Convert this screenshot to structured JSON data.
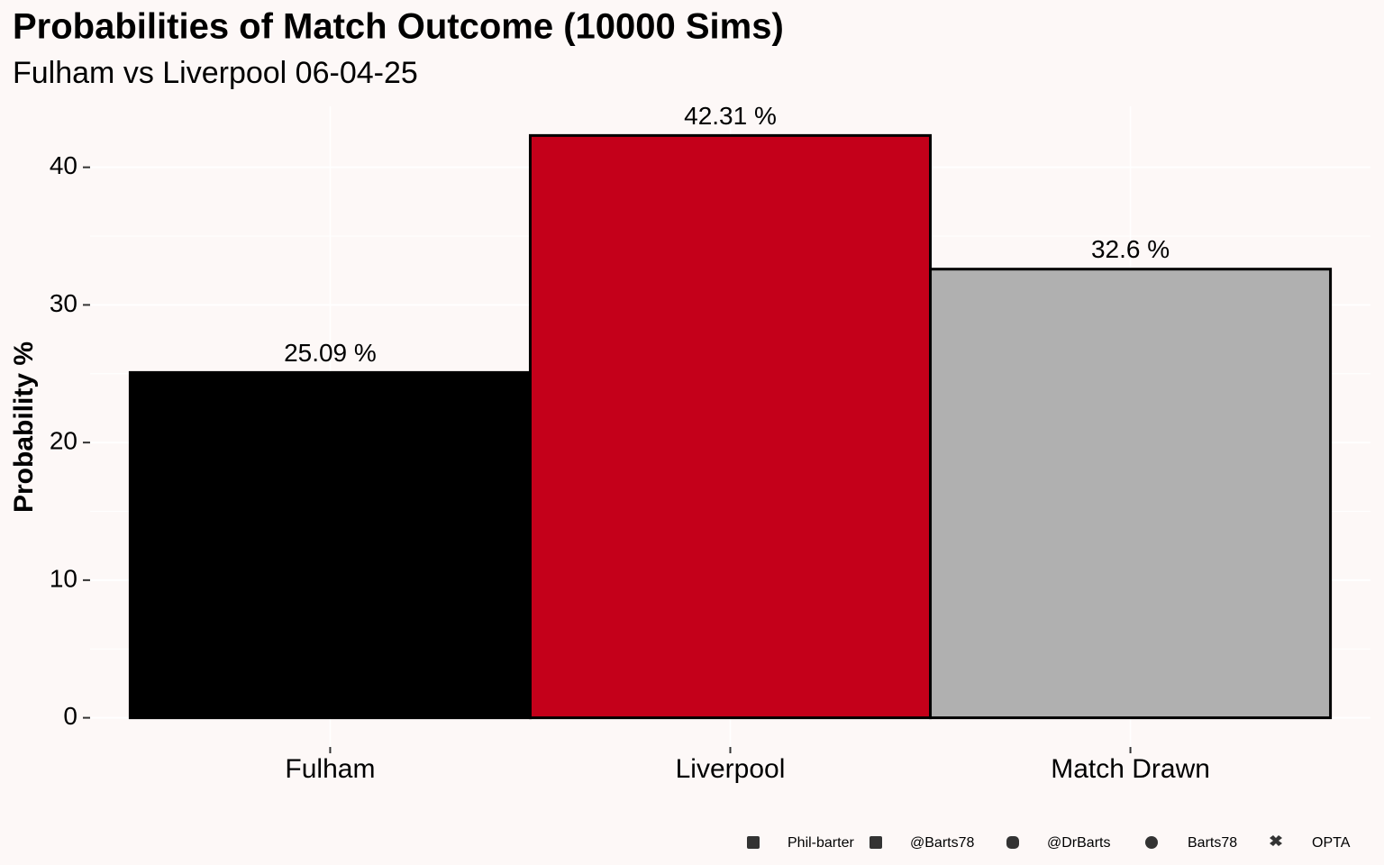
{
  "chart_data": {
    "type": "bar",
    "title": "Probabilities of Match Outcome (10000 Sims)",
    "subtitle": "Fulham vs Liverpool 06-04-25",
    "y_label": "Probability %",
    "categories": [
      "Fulham",
      "Liverpool",
      "Match Drawn"
    ],
    "values": [
      25.09,
      42.31,
      32.6
    ],
    "value_labels": [
      "25.09  %",
      "42.31  %",
      "32.6  %"
    ],
    "colors": [
      "#000000",
      "#c4001a",
      "#b0b0b0"
    ],
    "ylim": [
      -2.12,
      44.43
    ],
    "yticks": [
      0,
      10,
      20,
      30,
      40
    ],
    "grid": true,
    "caption": [
      "Phil-barter",
      "@Barts78",
      "@DrBarts",
      "Barts78",
      "OPTA"
    ]
  }
}
